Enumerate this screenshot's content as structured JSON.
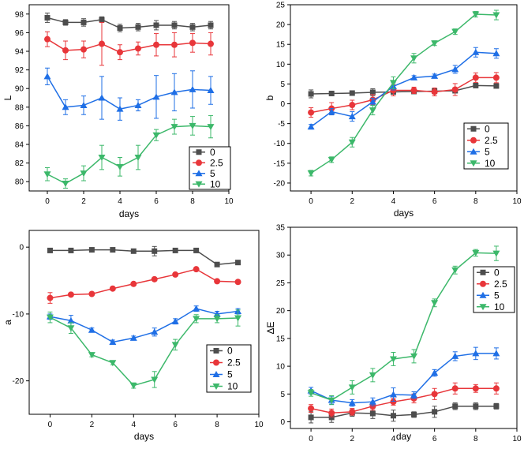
{
  "legend_series": [
    "0",
    "2.5",
    "5",
    "10"
  ],
  "colors": {
    "0": "#4d4d4d",
    "2.5": "#e8363a",
    "5": "#1f6fe6",
    "10": "#3cb86a"
  },
  "markers": {
    "0": "square",
    "2.5": "circle",
    "5": "triangle-up",
    "10": "triangle-down"
  },
  "chart_data": [
    {
      "id": "L",
      "type": "line",
      "title": "",
      "xlabel": "days",
      "ylabel": "L",
      "xlim": [
        -1,
        10
      ],
      "ylim": [
        79,
        99
      ],
      "xticks": [
        0,
        2,
        4,
        6,
        8,
        10
      ],
      "yticks": [
        80,
        82,
        84,
        86,
        88,
        90,
        92,
        94,
        96,
        98
      ],
      "legend_position": "bottom-right",
      "x": [
        0,
        1,
        2,
        3,
        4,
        5,
        6,
        7,
        8,
        9
      ],
      "series": [
        {
          "name": "0",
          "values": [
            97.6,
            97.1,
            97.1,
            97.4,
            96.5,
            96.6,
            96.8,
            96.8,
            96.6,
            96.8
          ],
          "errors": [
            0.5,
            0.3,
            0.4,
            0.3,
            0.4,
            0.4,
            0.5,
            0.4,
            0.4,
            0.4
          ]
        },
        {
          "name": "2.5",
          "values": [
            95.3,
            94.1,
            94.2,
            94.8,
            93.9,
            94.3,
            94.7,
            94.7,
            94.9,
            94.8
          ],
          "errors": [
            0.8,
            1.0,
            0.9,
            2.3,
            0.8,
            0.7,
            1.2,
            1.3,
            1.0,
            1.2
          ]
        },
        {
          "name": "5",
          "values": [
            91.3,
            88.0,
            88.2,
            89.0,
            87.8,
            88.2,
            89.1,
            89.6,
            89.9,
            89.8
          ],
          "errors": [
            0.9,
            0.8,
            1.0,
            2.3,
            1.2,
            0.6,
            2.3,
            2.0,
            2.0,
            1.5
          ]
        },
        {
          "name": "10",
          "values": [
            80.8,
            79.8,
            80.9,
            82.6,
            81.6,
            82.6,
            85.0,
            85.9,
            86.0,
            85.9
          ],
          "errors": [
            0.7,
            0.5,
            0.8,
            1.3,
            1.0,
            1.3,
            0.6,
            0.8,
            1.0,
            1.2
          ]
        }
      ]
    },
    {
      "id": "b",
      "type": "line",
      "title": "",
      "xlabel": "days",
      "ylabel": "b",
      "xlim": [
        -1,
        10
      ],
      "ylim": [
        -22,
        25
      ],
      "xticks": [
        0,
        2,
        4,
        6,
        8,
        10
      ],
      "yticks": [
        -20,
        -15,
        -10,
        -5,
        0,
        5,
        10,
        15,
        20,
        25
      ],
      "legend_position": "bottom-right",
      "x": [
        0,
        1,
        2,
        3,
        4,
        5,
        6,
        7,
        8,
        9
      ],
      "series": [
        {
          "name": "0",
          "values": [
            2.5,
            2.6,
            2.7,
            2.9,
            3.0,
            3.1,
            3.2,
            3.3,
            4.6,
            4.5
          ],
          "errors": [
            1.0,
            0.5,
            0.4,
            0.9,
            0.5,
            0.4,
            0.6,
            0.5,
            0.5,
            0.5
          ]
        },
        {
          "name": "2.5",
          "values": [
            -2.2,
            -1.2,
            -0.3,
            1.0,
            3.4,
            3.4,
            3.0,
            3.6,
            6.6,
            6.6
          ],
          "errors": [
            1.2,
            1.5,
            1.2,
            1.3,
            1.4,
            0.8,
            1.0,
            1.5,
            1.2,
            1.3
          ]
        },
        {
          "name": "5",
          "values": [
            -5.8,
            -2.0,
            -3.2,
            0.5,
            4.4,
            6.6,
            7.0,
            8.7,
            13.0,
            12.7
          ],
          "errors": [
            0.6,
            0.8,
            1.2,
            0.9,
            0.9,
            0.5,
            0.5,
            1.0,
            1.2,
            1.2
          ]
        },
        {
          "name": "10",
          "values": [
            -17.5,
            -14.1,
            -9.7,
            -1.6,
            5.3,
            11.5,
            15.3,
            18.2,
            22.6,
            22.4
          ],
          "errors": [
            0.7,
            0.7,
            1.2,
            1.2,
            1.5,
            1.2,
            0.6,
            0.7,
            0.7,
            1.2
          ]
        }
      ]
    },
    {
      "id": "a",
      "type": "line",
      "title": "",
      "xlabel": "days",
      "ylabel": "a",
      "xlim": [
        -1,
        10
      ],
      "ylim": [
        -25,
        2.5
      ],
      "xticks": [
        0,
        2,
        4,
        6,
        8,
        10
      ],
      "yticks": [
        -20,
        -10,
        0
      ],
      "legend_position": "bottom-right",
      "x": [
        0,
        1,
        2,
        3,
        4,
        5,
        6,
        7,
        8,
        9
      ],
      "series": [
        {
          "name": "0",
          "values": [
            -0.5,
            -0.5,
            -0.4,
            -0.4,
            -0.6,
            -0.6,
            -0.5,
            -0.5,
            -2.6,
            -2.3
          ],
          "errors": [
            0.2,
            0.2,
            0.2,
            0.2,
            0.2,
            0.7,
            0.2,
            0.2,
            0.2,
            0.2
          ]
        },
        {
          "name": "2.5",
          "values": [
            -7.6,
            -7.1,
            -7.0,
            -6.2,
            -5.5,
            -4.8,
            -4.1,
            -3.3,
            -5.1,
            -5.2
          ],
          "errors": [
            0.8,
            0.2,
            0.2,
            0.2,
            0.2,
            0.2,
            0.2,
            0.2,
            0.2,
            0.2
          ]
        },
        {
          "name": "5",
          "values": [
            -10.4,
            -11.0,
            -12.4,
            -14.2,
            -13.6,
            -12.7,
            -11.1,
            -9.2,
            -10.0,
            -9.6
          ],
          "errors": [
            0.4,
            0.8,
            0.3,
            0.3,
            0.3,
            0.6,
            0.4,
            0.4,
            0.4,
            0.4
          ]
        },
        {
          "name": "10",
          "values": [
            -10.5,
            -12.1,
            -16.1,
            -17.3,
            -20.7,
            -19.8,
            -14.6,
            -10.7,
            -10.7,
            -10.6
          ],
          "errors": [
            0.8,
            0.8,
            0.3,
            0.3,
            0.4,
            1.2,
            0.8,
            0.6,
            0.6,
            1.2
          ]
        }
      ]
    },
    {
      "id": "dE",
      "type": "line",
      "title": "",
      "xlabel": "day",
      "ylabel": "ΔE",
      "xlim": [
        -1,
        10
      ],
      "ylim": [
        -1.2,
        35
      ],
      "xticks": [
        0,
        2,
        4,
        6,
        8,
        10
      ],
      "yticks": [
        0,
        5,
        10,
        15,
        20,
        25,
        30,
        35
      ],
      "legend_position": "top-right",
      "x": [
        0,
        1,
        2,
        3,
        4,
        5,
        6,
        7,
        8,
        9
      ],
      "series": [
        {
          "name": "0",
          "values": [
            0.8,
            0.8,
            1.6,
            1.5,
            1.1,
            1.3,
            1.8,
            2.8,
            2.8,
            2.8
          ],
          "errors": [
            1.0,
            0.9,
            0.6,
            0.9,
            1.0,
            0.5,
            1.0,
            0.6,
            0.6,
            0.5
          ]
        },
        {
          "name": "2.5",
          "values": [
            2.4,
            1.6,
            1.8,
            2.8,
            3.6,
            4.2,
            5.0,
            6.0,
            6.0,
            6.0
          ],
          "errors": [
            0.7,
            0.7,
            0.6,
            0.7,
            0.6,
            0.8,
            1.0,
            1.0,
            0.7,
            1.0
          ]
        },
        {
          "name": "5",
          "values": [
            5.6,
            3.9,
            3.4,
            3.6,
            4.9,
            4.8,
            8.8,
            11.8,
            12.3,
            12.3
          ],
          "errors": [
            0.6,
            0.7,
            0.6,
            0.7,
            1.2,
            0.6,
            0.6,
            0.8,
            1.1,
            1.0
          ]
        },
        {
          "name": "10",
          "values": [
            5.2,
            3.9,
            6.2,
            8.4,
            11.3,
            11.8,
            21.4,
            27.3,
            30.4,
            30.3
          ],
          "errors": [
            0.6,
            0.8,
            1.2,
            1.2,
            1.2,
            1.2,
            0.7,
            0.7,
            0.6,
            1.3
          ]
        }
      ]
    }
  ]
}
